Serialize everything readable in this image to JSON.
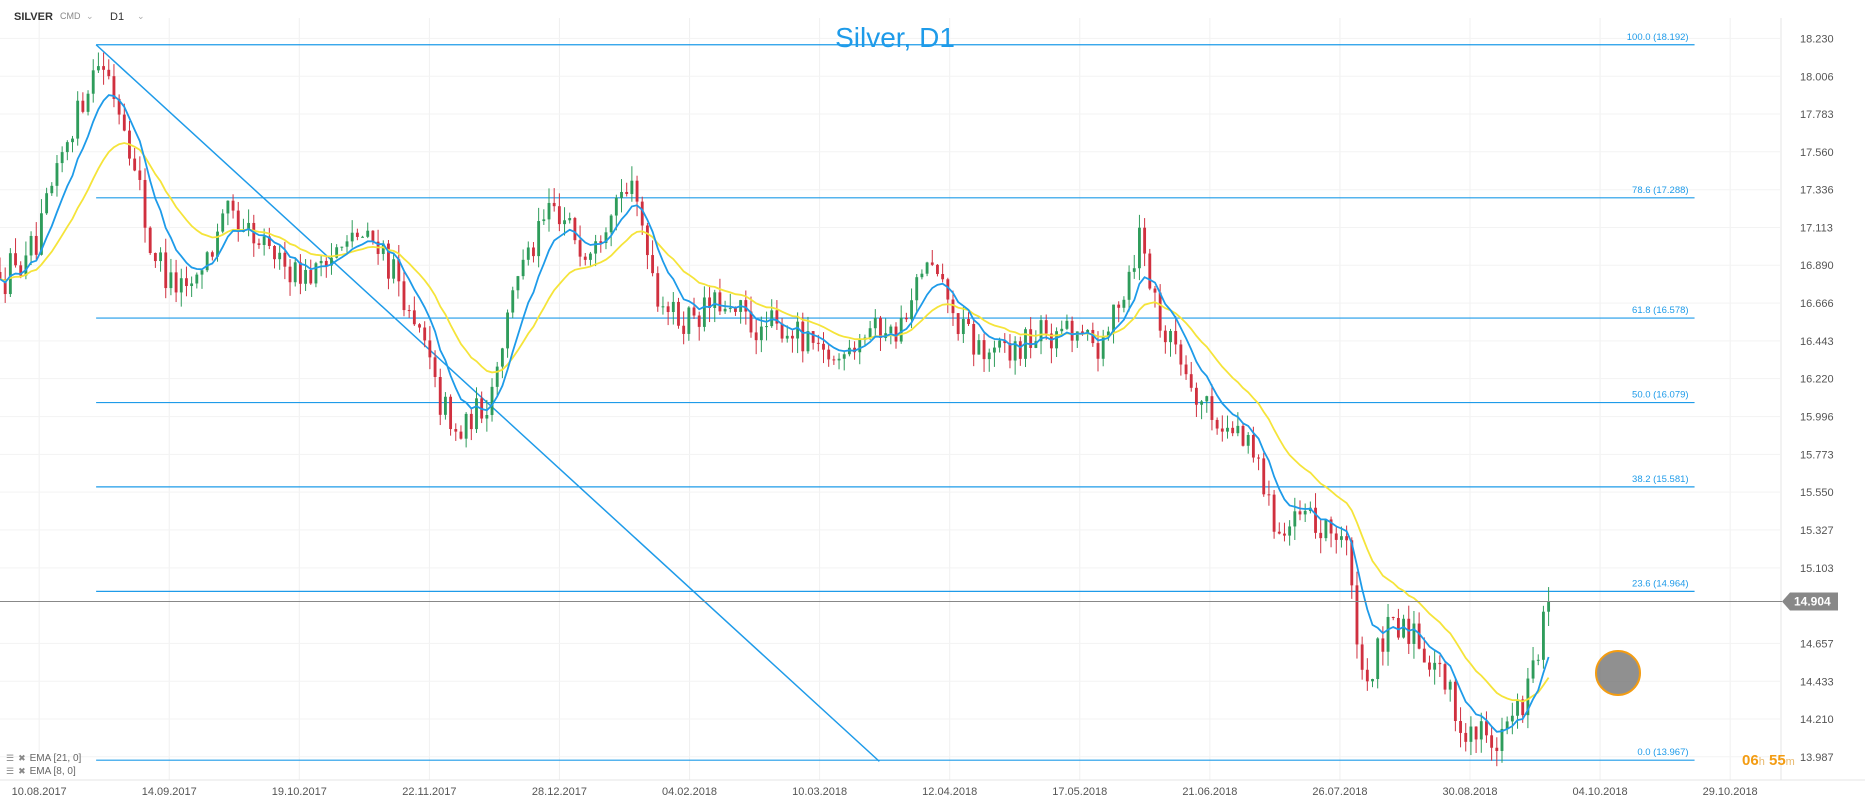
{
  "toolbar": {
    "symbol": "SILVER",
    "symbol_type": "CMD",
    "timeframe": "D1"
  },
  "chart_data": {
    "type": "candlestick",
    "title": "Silver, D1",
    "ylim": [
      13.85,
      18.35
    ],
    "y_ticks": [
      "18.230",
      "18.006",
      "17.783",
      "17.560",
      "17.336",
      "17.113",
      "16.890",
      "16.666",
      "16.443",
      "16.220",
      "15.996",
      "15.773",
      "15.550",
      "15.327",
      "15.103",
      "14.657",
      "14.433",
      "14.210",
      "13.987"
    ],
    "x_ticks": [
      "10.08.2017",
      "14.09.2017",
      "19.10.2017",
      "22.11.2017",
      "28.12.2017",
      "04.02.2018",
      "10.03.2018",
      "12.04.2018",
      "17.05.2018",
      "21.06.2018",
      "26.07.2018",
      "30.08.2018",
      "04.10.2018",
      "29.10.2018"
    ],
    "current_price": "14.904",
    "current_price_value": 14.904,
    "fibonacci": {
      "top": 18.192,
      "bottom": 13.967,
      "levels": [
        {
          "label": "100.0 (18.192)",
          "value": 18.192
        },
        {
          "label": "78.6 (17.288)",
          "value": 17.288
        },
        {
          "label": "61.8 (16.578)",
          "value": 16.578
        },
        {
          "label": "50.0 (16.079)",
          "value": 16.079
        },
        {
          "label": "38.2 (15.581)",
          "value": 15.581
        },
        {
          "label": "23.6 (14.964)",
          "value": 14.964
        },
        {
          "label": "0.0 (13.967)",
          "value": 13.967
        }
      ]
    },
    "trendline": {
      "from": [
        0.054,
        18.192
      ],
      "to": [
        0.494,
        13.96
      ]
    },
    "ema_fast": {
      "name": "EMA [8, 0]",
      "color": "#1e9be9"
    },
    "ema_slow": {
      "name": "EMA [21, 0]",
      "color": "#f5e43a"
    },
    "colors": {
      "up": "#2e9c5b",
      "down": "#d0303f",
      "fib": "#1e9be9",
      "price_line": "#888888",
      "title": "#1e9be9"
    },
    "anchors": [
      [
        0.0,
        16.85
      ],
      [
        0.02,
        16.95
      ],
      [
        0.035,
        17.55
      ],
      [
        0.054,
        18.15
      ],
      [
        0.07,
        17.75
      ],
      [
        0.085,
        16.95
      ],
      [
        0.105,
        16.7
      ],
      [
        0.125,
        17.15
      ],
      [
        0.15,
        16.95
      ],
      [
        0.175,
        16.85
      ],
      [
        0.195,
        17.05
      ],
      [
        0.215,
        17.0
      ],
      [
        0.235,
        16.45
      ],
      [
        0.255,
        15.85
      ],
      [
        0.272,
        16.05
      ],
      [
        0.29,
        16.85
      ],
      [
        0.31,
        17.2
      ],
      [
        0.33,
        17.0
      ],
      [
        0.345,
        17.35
      ],
      [
        0.358,
        17.25
      ],
      [
        0.37,
        16.7
      ],
      [
        0.385,
        16.55
      ],
      [
        0.4,
        16.65
      ],
      [
        0.425,
        16.5
      ],
      [
        0.445,
        16.5
      ],
      [
        0.465,
        16.3
      ],
      [
        0.485,
        16.55
      ],
      [
        0.505,
        16.5
      ],
      [
        0.52,
        16.9
      ],
      [
        0.53,
        16.7
      ],
      [
        0.545,
        16.4
      ],
      [
        0.56,
        16.35
      ],
      [
        0.58,
        16.45
      ],
      [
        0.6,
        16.5
      ],
      [
        0.62,
        16.4
      ],
      [
        0.64,
        17.1
      ],
      [
        0.65,
        16.6
      ],
      [
        0.665,
        16.3
      ],
      [
        0.68,
        16.0
      ],
      [
        0.7,
        15.85
      ],
      [
        0.718,
        15.35
      ],
      [
        0.735,
        15.35
      ],
      [
        0.755,
        15.3
      ],
      [
        0.765,
        14.4
      ],
      [
        0.78,
        14.7
      ],
      [
        0.795,
        14.75
      ],
      [
        0.81,
        14.45
      ],
      [
        0.82,
        14.15
      ],
      [
        0.84,
        14.1
      ],
      [
        0.855,
        14.25
      ],
      [
        0.862,
        14.58
      ],
      [
        0.87,
        14.9
      ]
    ]
  },
  "legend": {
    "ema_slow": "EMA [21, 0]",
    "ema_fast": "EMA [8, 0]"
  },
  "timer": {
    "hours": "06",
    "hours_unit": "h",
    "minutes": "55",
    "minutes_unit": "m"
  }
}
